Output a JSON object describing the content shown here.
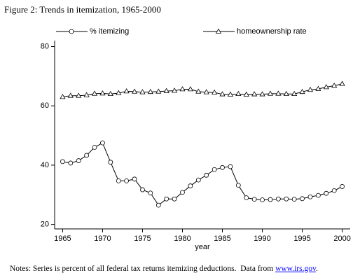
{
  "chart_data": {
    "type": "line",
    "title": "Figure 2: Trends in itemization, 1965-2000",
    "xlabel": "year",
    "x": [
      1965,
      1966,
      1967,
      1968,
      1969,
      1970,
      1971,
      1972,
      1973,
      1974,
      1975,
      1976,
      1977,
      1978,
      1979,
      1980,
      1981,
      1982,
      1983,
      1984,
      1985,
      1986,
      1987,
      1988,
      1989,
      1990,
      1991,
      1992,
      1993,
      1994,
      1995,
      1996,
      1997,
      1998,
      1999,
      2000
    ],
    "series": [
      {
        "name": "% itemizing",
        "color": "#000000",
        "marker": "circle",
        "values": [
          41.2,
          40.7,
          41.5,
          43.3,
          46.0,
          47.5,
          41.0,
          34.7,
          34.7,
          35.3,
          31.7,
          30.6,
          26.5,
          28.6,
          28.6,
          30.8,
          33.0,
          35.0,
          36.6,
          38.5,
          39.2,
          39.5,
          33.2,
          29.0,
          28.5,
          28.3,
          28.4,
          28.6,
          28.6,
          28.5,
          28.7,
          29.3,
          29.8,
          30.5,
          31.4,
          32.8
        ]
      },
      {
        "name": "homeownership rate",
        "color": "#000000",
        "marker": "triangle",
        "values": [
          63.0,
          63.4,
          63.4,
          63.6,
          64.1,
          64.2,
          64.0,
          64.3,
          64.9,
          64.8,
          64.6,
          64.7,
          64.8,
          65.0,
          65.1,
          65.6,
          65.6,
          64.8,
          64.6,
          64.5,
          63.9,
          63.8,
          64.0,
          63.8,
          63.9,
          63.9,
          64.1,
          64.1,
          64.0,
          64.0,
          64.7,
          65.4,
          65.7,
          66.3,
          66.8,
          67.4
        ]
      }
    ],
    "xlim": [
      1964,
      2001
    ],
    "xticks": [
      1965,
      1970,
      1975,
      1980,
      1985,
      1990,
      1995,
      2000
    ],
    "ylim": [
      18.5,
      82
    ],
    "yticks": [
      20,
      40,
      60,
      80
    ],
    "note": "Notes: Series is percent of all federal tax returns itemizing deductions.  Data from ",
    "note_link": "www.irs.gov",
    "note_end": "."
  }
}
